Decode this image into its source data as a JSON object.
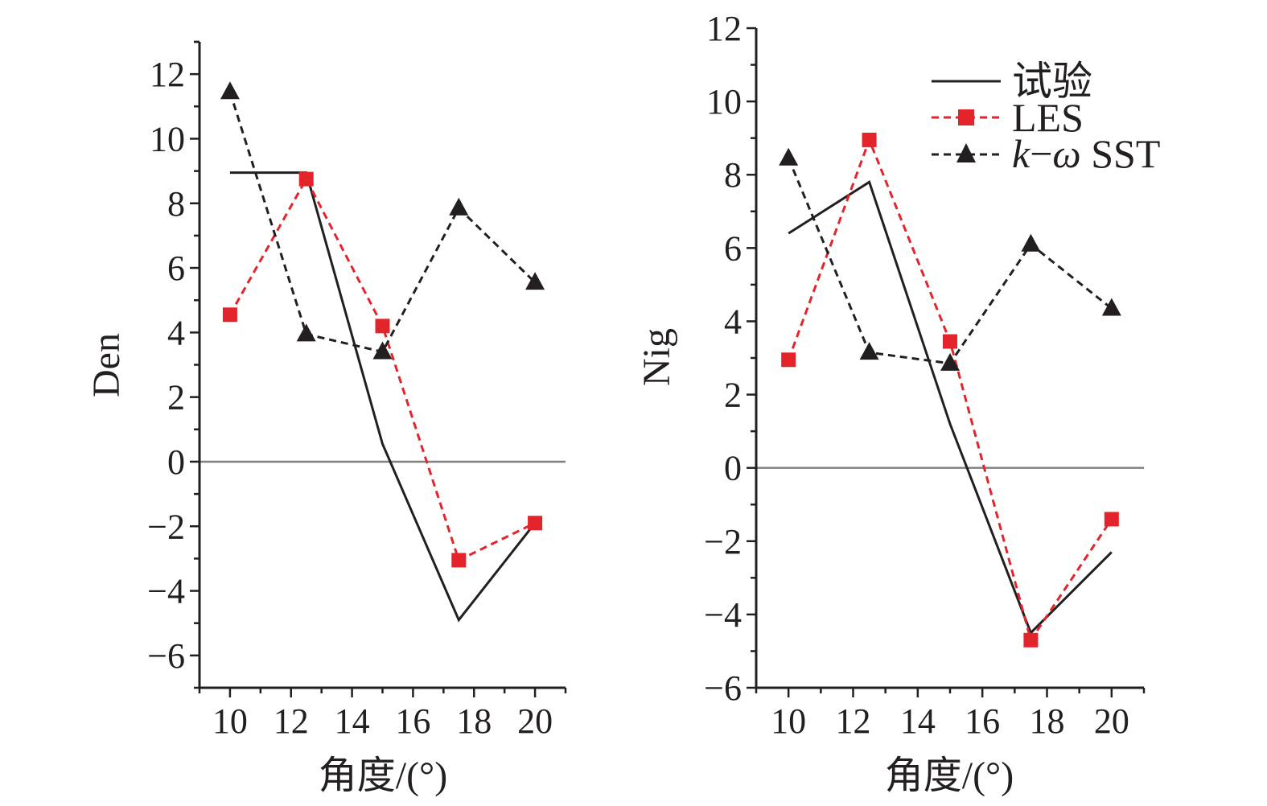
{
  "legend": {
    "entries": [
      {
        "key": "exp",
        "label": "试验",
        "style": "solid"
      },
      {
        "key": "les",
        "label": "LES",
        "style": "dashed-square"
      },
      {
        "key": "sst",
        "label_k": "k",
        "label_dash": "−",
        "label_omega": "ω",
        "label_rest": " SST",
        "style": "dashed-triangle"
      }
    ]
  },
  "colors": {
    "exp": "#231f20",
    "les": "#e4242b",
    "sst": "#231f20",
    "zero_line": "#808080",
    "axis": "#231f20"
  },
  "chart_data": [
    {
      "type": "line",
      "title": "",
      "xlabel": "角度/(°)",
      "ylabel": "Den",
      "xlim": [
        9,
        21
      ],
      "ylim": [
        -7,
        13
      ],
      "xticks": [
        10,
        12,
        14,
        16,
        18,
        20
      ],
      "xtick_labels": [
        "10",
        "12",
        "14",
        "16",
        "18",
        "20"
      ],
      "yticks": [
        -6,
        -4,
        -2,
        0,
        2,
        4,
        6,
        8,
        10,
        12
      ],
      "ytick_labels": [
        "−6",
        "−4",
        "−2",
        "0",
        "2",
        "4",
        "6",
        "8",
        "10",
        "12"
      ],
      "zero_line": 0,
      "series": [
        {
          "name": "试验",
          "key": "exp",
          "x": [
            10,
            12.5,
            15,
            17.5,
            20
          ],
          "values": [
            8.95,
            8.95,
            0.55,
            -4.9,
            -1.9
          ]
        },
        {
          "name": "LES",
          "key": "les",
          "x": [
            10,
            12.5,
            15,
            17.5,
            20
          ],
          "values": [
            4.55,
            8.75,
            4.2,
            -3.05,
            -1.9
          ]
        },
        {
          "name": "k−ω SST",
          "key": "sst",
          "x": [
            10,
            12.5,
            15,
            17.5,
            20
          ],
          "values": [
            11.45,
            3.95,
            3.4,
            7.85,
            5.55
          ]
        }
      ]
    },
    {
      "type": "line",
      "title": "",
      "xlabel": "角度/(°)",
      "ylabel": "Nig",
      "xlim": [
        9,
        21
      ],
      "ylim": [
        -6,
        12
      ],
      "xticks": [
        10,
        12,
        14,
        16,
        18,
        20
      ],
      "xtick_labels": [
        "10",
        "12",
        "14",
        "16",
        "18",
        "20"
      ],
      "yticks": [
        -6,
        -4,
        -2,
        0,
        2,
        4,
        6,
        8,
        10,
        12
      ],
      "ytick_labels": [
        "−6",
        "−4",
        "−2",
        "0",
        "2",
        "4",
        "6",
        "8",
        "10",
        "12"
      ],
      "zero_line": 0,
      "series": [
        {
          "name": "试验",
          "key": "exp",
          "x": [
            10,
            12.5,
            15,
            17.5,
            20
          ],
          "values": [
            6.4,
            7.8,
            1.2,
            -4.5,
            -2.3
          ]
        },
        {
          "name": "LES",
          "key": "les",
          "x": [
            10,
            12.5,
            15,
            17.5,
            20
          ],
          "values": [
            2.95,
            8.95,
            3.45,
            -4.7,
            -1.4
          ]
        },
        {
          "name": "k−ω SST",
          "key": "sst",
          "x": [
            10,
            12.5,
            15,
            17.5,
            20
          ],
          "values": [
            8.45,
            3.15,
            2.85,
            6.1,
            4.35
          ]
        }
      ]
    }
  ]
}
